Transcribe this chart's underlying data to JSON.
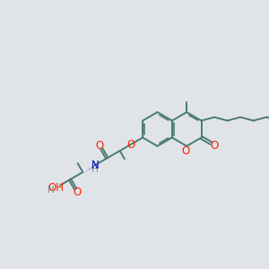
{
  "bg_color": "#e0e4e8",
  "bond_color": "#4a7c6f",
  "o_color": "#ff2200",
  "n_color": "#0000cc",
  "h_color": "#888888",
  "line_width": 1.4,
  "font_size": 8.5,
  "xlim": [
    0,
    10
  ],
  "ylim": [
    0,
    10
  ]
}
